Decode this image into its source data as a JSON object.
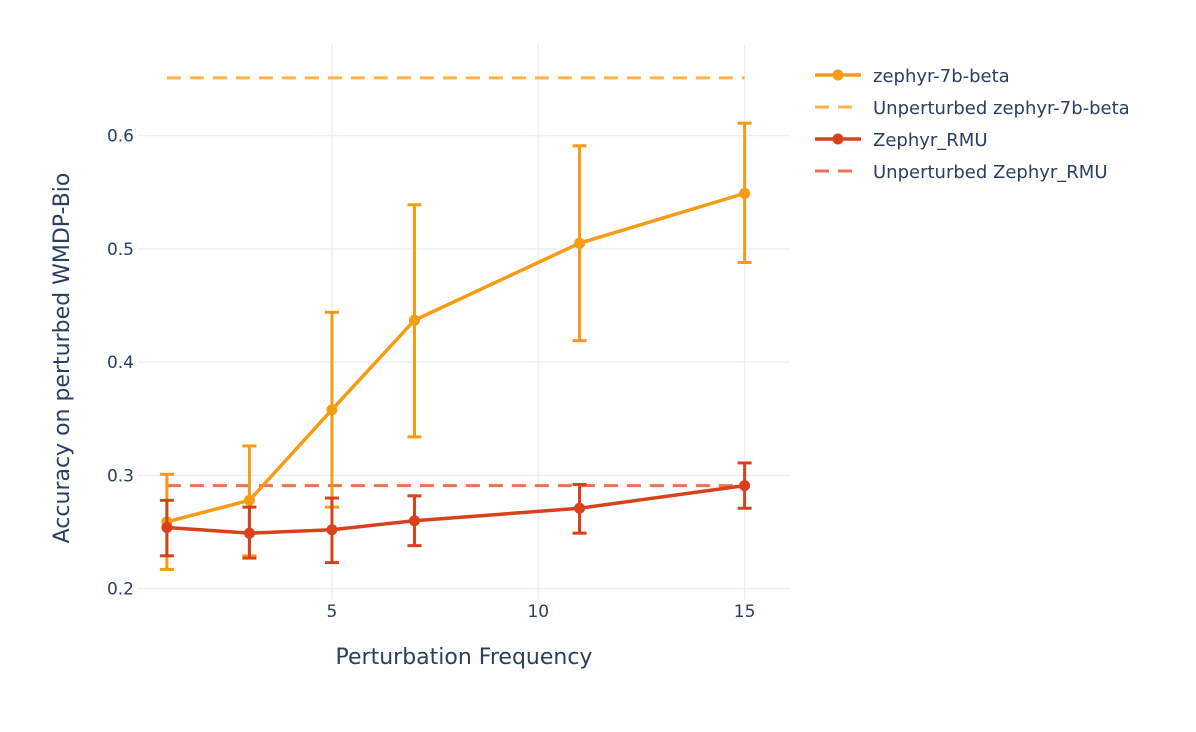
{
  "chart_data": {
    "type": "line",
    "title": "",
    "xlabel": "Perturbation Frequency",
    "ylabel": "Accuracy on perturbed WMDP-Bio",
    "xlim": [
      0.3,
      16.1
    ],
    "ylim": [
      0.19,
      0.68
    ],
    "x_ticks": [
      5,
      10,
      15
    ],
    "y_ticks": [
      0.2,
      0.3,
      0.4,
      0.5,
      0.6
    ],
    "x_tick_labels": [
      "5",
      "10",
      "15"
    ],
    "y_tick_labels": [
      "0.2",
      "0.3",
      "0.4",
      "0.5",
      "0.6"
    ],
    "grid": true,
    "legend_position": "right",
    "series": [
      {
        "name": "zephyr-7b-beta",
        "color": "#f59c12",
        "style": "solid-markers",
        "x": [
          1,
          3,
          5,
          7,
          11,
          15
        ],
        "y": [
          0.259,
          0.278,
          0.358,
          0.437,
          0.505,
          0.549
        ],
        "error_low": [
          0.217,
          0.229,
          0.272,
          0.334,
          0.419,
          0.488
        ],
        "error_high": [
          0.301,
          0.326,
          0.444,
          0.539,
          0.591,
          0.611
        ]
      },
      {
        "name": "Unperturbed zephyr-7b-beta",
        "color": "#ffb347",
        "style": "dash",
        "x": [
          1,
          15
        ],
        "y": [
          0.651,
          0.651
        ]
      },
      {
        "name": "Zephyr_RMU",
        "color": "#d9401c",
        "style": "solid-markers",
        "x": [
          1,
          3,
          5,
          7,
          11,
          15
        ],
        "y": [
          0.254,
          0.249,
          0.252,
          0.26,
          0.271,
          0.291
        ],
        "error_low": [
          0.229,
          0.227,
          0.223,
          0.238,
          0.249,
          0.271
        ],
        "error_high": [
          0.278,
          0.272,
          0.28,
          0.282,
          0.292,
          0.311
        ]
      },
      {
        "name": "Unperturbed Zephyr_RMU",
        "color": "#ee7050",
        "style": "dash",
        "x": [
          1,
          15
        ],
        "y": [
          0.291,
          0.291
        ]
      }
    ]
  }
}
